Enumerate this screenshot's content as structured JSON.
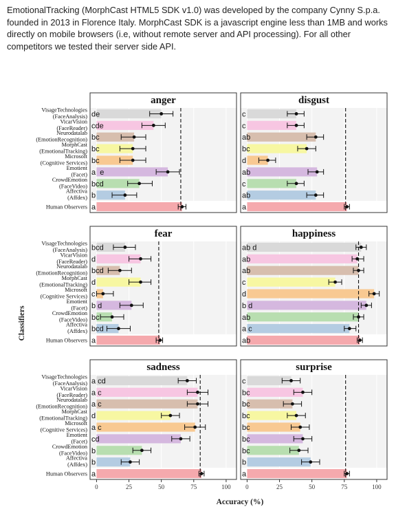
{
  "intro_text": "EmotionalTracking  (MorphCast HTML5 SDK v1.0) was developed by the company Cynny S.p.a.  founded in 2013 in Florence Italy. MorphCast SDK is a javascript engine less than 1MB and works directly on mobile browsers (i.e, without remote server and API processing). For all other competitors we tested their server side API.",
  "chart_data": {
    "type": "bar",
    "orientation": "horizontal",
    "ylabel": "Classifiers",
    "xlabel": "Accuracy (%)",
    "xlim": [
      -5,
      108
    ],
    "xticks": [
      0,
      25,
      50,
      75,
      100
    ],
    "grid": true,
    "classifiers": [
      {
        "label_lines": [
          "VisageTechnologies",
          "(FaceAnalysis)"
        ],
        "color": "#d9d9d9"
      },
      {
        "label_lines": [
          "VicarVision",
          "(FaceReader)"
        ],
        "color": "#f7c6e2"
      },
      {
        "label_lines": [
          "Neurodatalab",
          "(EmotionRecognition)"
        ],
        "color": "#d7beae"
      },
      {
        "label_lines": [
          "MorphCast",
          "(EmotionalTracking)"
        ],
        "color": "#f7f7a2"
      },
      {
        "label_lines": [
          "Microsoft",
          "(Cognitive Services)"
        ],
        "color": "#f8c992"
      },
      {
        "label_lines": [
          "Emotient",
          "(Facet)"
        ],
        "color": "#d5b8df"
      },
      {
        "label_lines": [
          "CrowdEmotion",
          "(FaceVideo)"
        ],
        "color": "#b8deb0"
      },
      {
        "label_lines": [
          "Affectiva",
          "(Affdex)"
        ],
        "color": "#b4cce2"
      },
      {
        "label_lines": [
          "Human Observers"
        ],
        "color": "#f5a9ad"
      }
    ],
    "panels": [
      {
        "title": "anger",
        "human_mean": 65,
        "values": [
          50,
          44,
          29,
          28,
          28,
          55,
          33,
          22,
          66
        ],
        "ci": [
          [
            41,
            59
          ],
          [
            35,
            53
          ],
          [
            19,
            38
          ],
          [
            18,
            38
          ],
          [
            18,
            38
          ],
          [
            46,
            64
          ],
          [
            24,
            43
          ],
          [
            12,
            31
          ],
          [
            63,
            69
          ]
        ],
        "letters": [
          "de",
          "cde",
          "bc",
          "bc",
          "bc",
          "a  e",
          "bcd",
          "b",
          "a"
        ]
      },
      {
        "title": "disgust",
        "human_mean": 76,
        "values": [
          38,
          38,
          53,
          46,
          16,
          54,
          38,
          53,
          77
        ],
        "ci": [
          [
            31,
            44
          ],
          [
            31,
            44
          ],
          [
            46,
            59
          ],
          [
            39,
            53
          ],
          [
            9,
            22
          ],
          [
            47,
            59
          ],
          [
            31,
            44
          ],
          [
            46,
            59
          ],
          [
            75,
            79
          ]
        ],
        "letters": [
          "c",
          "c",
          "ab",
          "bc",
          "d",
          "ab",
          "c",
          "ab",
          "a"
        ]
      },
      {
        "title": "fear",
        "human_mean": 48,
        "values": [
          22,
          34,
          18,
          34,
          5,
          27,
          12,
          17,
          49
        ],
        "ci": [
          [
            13,
            30
          ],
          [
            25,
            42
          ],
          [
            9,
            27
          ],
          [
            25,
            42
          ],
          [
            0,
            13
          ],
          [
            18,
            36
          ],
          [
            3,
            21
          ],
          [
            8,
            26
          ],
          [
            46,
            51
          ]
        ],
        "letters": [
          "bcd",
          "d",
          "bcd",
          "d",
          "c",
          "b d",
          "bc",
          "bcd",
          "a"
        ]
      },
      {
        "title": "happiness",
        "human_mean": 86,
        "values": [
          88,
          85,
          86,
          68,
          98,
          92,
          86,
          79,
          87
        ],
        "ci": [
          [
            84,
            92
          ],
          [
            81,
            90
          ],
          [
            82,
            90
          ],
          [
            63,
            73
          ],
          [
            94,
            102
          ],
          [
            88,
            96
          ],
          [
            82,
            90
          ],
          [
            75,
            84
          ],
          [
            85,
            89
          ]
        ],
        "letters": [
          "ab d",
          "ab",
          "ab",
          "c",
          "d",
          "b d",
          "ab",
          "a c",
          "ab"
        ]
      },
      {
        "title": "sadness",
        "human_mean": 80,
        "values": [
          70,
          78,
          78,
          57,
          76,
          65,
          35,
          26,
          81
        ],
        "ci": [
          [
            63,
            77
          ],
          [
            70,
            86
          ],
          [
            70,
            86
          ],
          [
            50,
            64
          ],
          [
            68,
            84
          ],
          [
            58,
            72
          ],
          [
            28,
            42
          ],
          [
            19,
            33
          ],
          [
            79,
            83
          ]
        ],
        "letters": [
          "a cd",
          "a c",
          "a c",
          "d",
          "a c",
          "cd",
          "b",
          "b",
          "a"
        ]
      },
      {
        "title": "surprise",
        "human_mean": 76,
        "values": [
          34,
          43,
          35,
          38,
          41,
          43,
          40,
          49,
          77
        ],
        "ci": [
          [
            27,
            41
          ],
          [
            36,
            50
          ],
          [
            28,
            42
          ],
          [
            31,
            45
          ],
          [
            34,
            48
          ],
          [
            36,
            50
          ],
          [
            33,
            47
          ],
          [
            42,
            56
          ],
          [
            75,
            79
          ]
        ],
        "letters": [
          "c",
          "bc",
          "bc",
          "bc",
          "bc",
          "bc",
          "bc",
          "b",
          "a"
        ]
      }
    ]
  }
}
